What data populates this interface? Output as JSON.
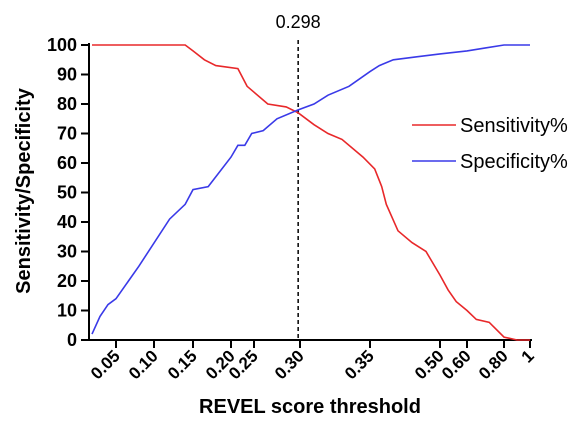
{
  "chart_data": {
    "type": "line",
    "xlabel": "REVEL score threshold",
    "ylabel": "Sensitivity/Specificity",
    "ylim": [
      0,
      100
    ],
    "y_ticks": [
      "0",
      "10",
      "20",
      "30",
      "40",
      "50",
      "60",
      "70",
      "80",
      "90",
      "100"
    ],
    "x_ticks": [
      "0.05",
      "0.10",
      "0.15",
      "0.20",
      "0.25",
      "0.30",
      "0.35",
      "0.50",
      "0.60",
      "0.80",
      "1"
    ],
    "annotation": {
      "label": "0.298",
      "x": 0.298
    },
    "legend_position": "right",
    "series": [
      {
        "name": "Sensitivity%",
        "color": "#e8282a",
        "points": [
          {
            "x": 0.02,
            "y": 100
          },
          {
            "x": 0.14,
            "y": 100
          },
          {
            "x": 0.15,
            "y": 98
          },
          {
            "x": 0.165,
            "y": 95
          },
          {
            "x": 0.18,
            "y": 93
          },
          {
            "x": 0.215,
            "y": 92
          },
          {
            "x": 0.235,
            "y": 86
          },
          {
            "x": 0.25,
            "y": 84
          },
          {
            "x": 0.265,
            "y": 80
          },
          {
            "x": 0.285,
            "y": 79
          },
          {
            "x": 0.298,
            "y": 77
          },
          {
            "x": 0.31,
            "y": 73
          },
          {
            "x": 0.32,
            "y": 70
          },
          {
            "x": 0.33,
            "y": 68
          },
          {
            "x": 0.345,
            "y": 62
          },
          {
            "x": 0.36,
            "y": 58
          },
          {
            "x": 0.375,
            "y": 52
          },
          {
            "x": 0.385,
            "y": 46
          },
          {
            "x": 0.41,
            "y": 37
          },
          {
            "x": 0.44,
            "y": 33
          },
          {
            "x": 0.47,
            "y": 30
          },
          {
            "x": 0.5,
            "y": 22
          },
          {
            "x": 0.53,
            "y": 17
          },
          {
            "x": 0.56,
            "y": 13
          },
          {
            "x": 0.6,
            "y": 10
          },
          {
            "x": 0.65,
            "y": 7
          },
          {
            "x": 0.72,
            "y": 6
          },
          {
            "x": 0.8,
            "y": 1
          },
          {
            "x": 0.9,
            "y": 0
          },
          {
            "x": 1.0,
            "y": 0
          }
        ]
      },
      {
        "name": "Specificity%",
        "color": "#3a3ae8",
        "points": [
          {
            "x": 0.02,
            "y": 2
          },
          {
            "x": 0.03,
            "y": 8
          },
          {
            "x": 0.04,
            "y": 12
          },
          {
            "x": 0.05,
            "y": 14
          },
          {
            "x": 0.08,
            "y": 25
          },
          {
            "x": 0.12,
            "y": 41
          },
          {
            "x": 0.14,
            "y": 46
          },
          {
            "x": 0.15,
            "y": 51
          },
          {
            "x": 0.17,
            "y": 52
          },
          {
            "x": 0.2,
            "y": 62
          },
          {
            "x": 0.215,
            "y": 66
          },
          {
            "x": 0.23,
            "y": 66
          },
          {
            "x": 0.245,
            "y": 70
          },
          {
            "x": 0.26,
            "y": 71
          },
          {
            "x": 0.275,
            "y": 75
          },
          {
            "x": 0.298,
            "y": 78
          },
          {
            "x": 0.31,
            "y": 80
          },
          {
            "x": 0.32,
            "y": 83
          },
          {
            "x": 0.335,
            "y": 86
          },
          {
            "x": 0.35,
            "y": 91
          },
          {
            "x": 0.37,
            "y": 93
          },
          {
            "x": 0.4,
            "y": 95
          },
          {
            "x": 0.45,
            "y": 96
          },
          {
            "x": 0.5,
            "y": 97
          },
          {
            "x": 0.6,
            "y": 98
          },
          {
            "x": 0.7,
            "y": 99
          },
          {
            "x": 0.8,
            "y": 100
          },
          {
            "x": 1.0,
            "y": 100
          }
        ]
      }
    ]
  }
}
